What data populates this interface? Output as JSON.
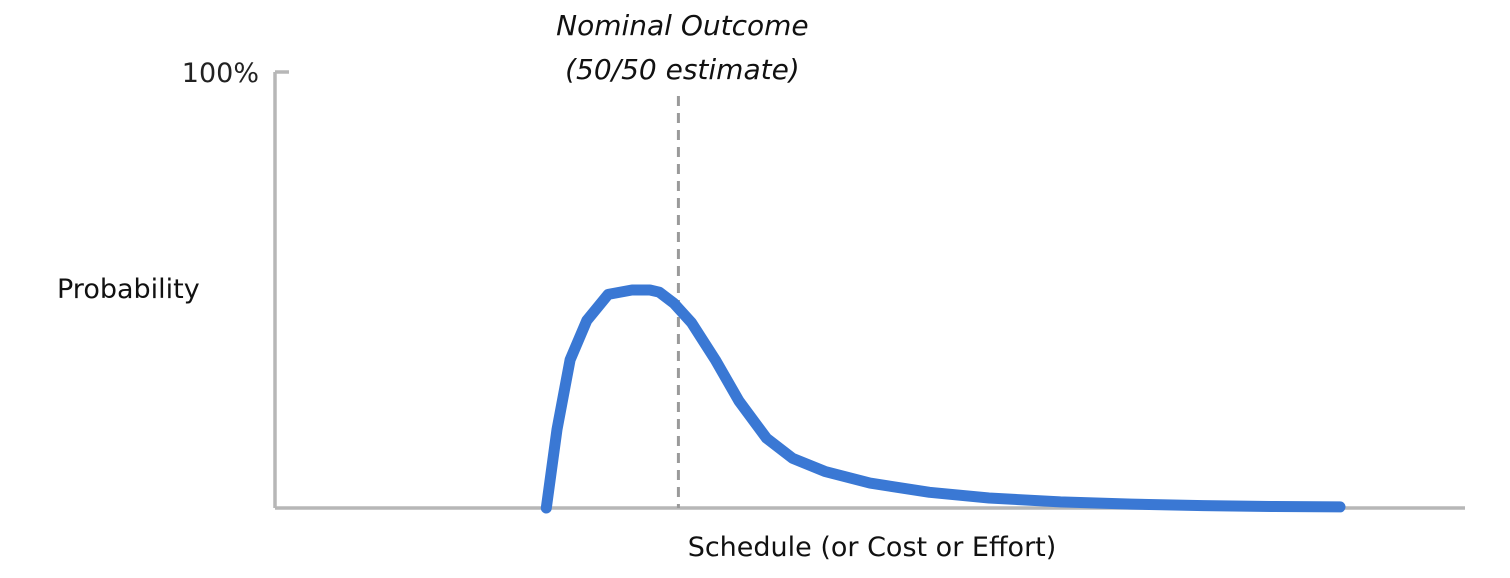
{
  "chart_data": {
    "type": "line",
    "ylabel": "Probability",
    "xlabel": "Schedule (or Cost or Effort)",
    "y_ticks": [
      {
        "value": 100,
        "label": "100%"
      }
    ],
    "ylim": [
      0,
      100
    ],
    "xlim": [
      0,
      100
    ],
    "grid": false,
    "curve_color": "#3a78d4",
    "axis_color": "#b7b7b7",
    "marker_color": "#9a9a9a",
    "series": [
      {
        "x": [
          22.8,
          23.7,
          24.8,
          26.2,
          28.0,
          30.0,
          31.5,
          32.3,
          33.5,
          35.0,
          37.0,
          39.0,
          41.3,
          43.5,
          46.2,
          50.0,
          55.0,
          60.0,
          66.0,
          72.0,
          78.0,
          84.0,
          89.5
        ],
        "y": [
          0.0,
          18.0,
          34.0,
          43.0,
          49.0,
          50.0,
          50.0,
          49.5,
          47.0,
          42.5,
          34.0,
          24.5,
          16.0,
          11.4,
          8.4,
          5.7,
          3.6,
          2.3,
          1.4,
          0.9,
          0.55,
          0.35,
          0.25
        ]
      }
    ],
    "annotations": [
      {
        "x": 33.9,
        "line1": "Nominal Outcome",
        "line2": "(50/50 estimate)"
      }
    ]
  }
}
